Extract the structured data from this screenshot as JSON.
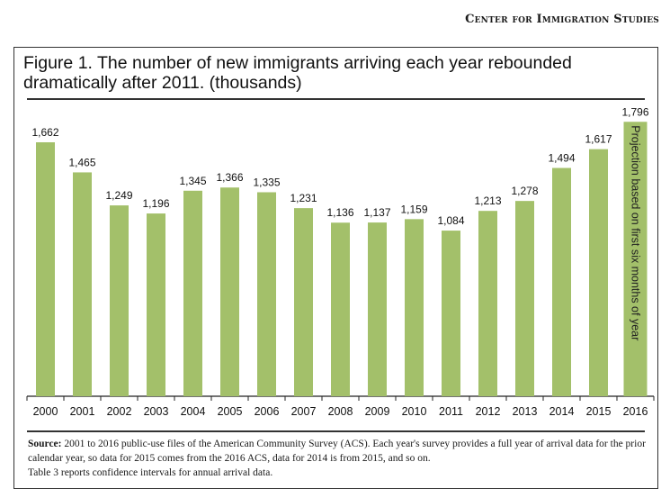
{
  "header": {
    "organization": "Center for Immigration Studies"
  },
  "figure": {
    "title": "Figure 1. The number of new immigrants arriving each year rebounded dramatically after 2011. (thousands)",
    "source_label": "Source:",
    "source_text": "2001 to 2016 public-use files of the American Community  Survey (ACS). Each year's survey provides a full year of arrival data for the prior  calendar year, so data for 2015 comes from the 2016 ACS, data for 2014 is from 2015, and so on.",
    "source_note": "Table 3 reports confidence intervals for annual arrival data."
  },
  "chart_data": {
    "type": "bar",
    "title": "Figure 1. The number of new immigrants arriving each year rebounded dramatically after 2011. (thousands)",
    "xlabel": "",
    "ylabel": "thousands",
    "categories": [
      "2000",
      "2001",
      "2002",
      "2003",
      "2004",
      "2005",
      "2006",
      "2007",
      "2008",
      "2009",
      "2010",
      "2011",
      "2012",
      "2013",
      "2014",
      "2015",
      "2016"
    ],
    "values": [
      1662,
      1465,
      1249,
      1196,
      1345,
      1366,
      1335,
      1231,
      1136,
      1137,
      1159,
      1084,
      1213,
      1278,
      1494,
      1617,
      1796
    ],
    "value_labels": [
      "1,662",
      "1,465",
      "1,249",
      "1,196",
      "1,345",
      "1,366",
      "1,335",
      "1,231",
      "1,136",
      "1,137",
      "1,159",
      "1,084",
      "1,213",
      "1,278",
      "1,494",
      "1,617",
      "1,796"
    ],
    "ylim": [
      0,
      1800
    ],
    "grid": false,
    "bar_color": "#a3c06a",
    "annotations": [
      {
        "category": "2016",
        "text": "Projection based on first six months of year"
      }
    ]
  }
}
